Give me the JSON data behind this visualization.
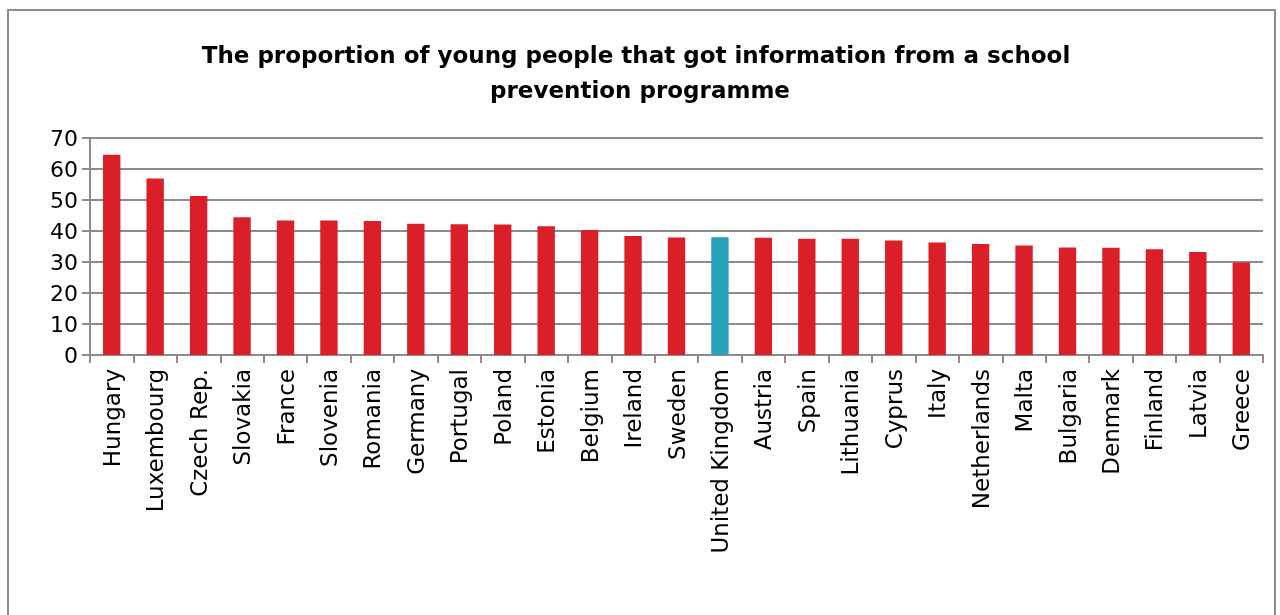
{
  "chart_data": {
    "type": "bar",
    "title": "The proportion of young people that got information from a school prevention programme",
    "categories": [
      "Hungary",
      "Luxembourg",
      "Czech Rep.",
      "Slovakia",
      "France",
      "Slovenia",
      "Romania",
      "Germany",
      "Portugal",
      "Poland",
      "Estonia",
      "Belgium",
      "Ireland",
      "Sweden",
      "United Kingdom",
      "Austria",
      "Spain",
      "Lithuania",
      "Cyprus",
      "Italy",
      "Netherlands",
      "Malta",
      "Bulgaria",
      "Denmark",
      "Finland",
      "Latvia",
      "Greece"
    ],
    "values": [
      64.6,
      56.9,
      51.3,
      44.4,
      43.4,
      43.4,
      43.2,
      42.3,
      42.2,
      42.1,
      41.5,
      40.3,
      38.4,
      37.9,
      38.0,
      37.8,
      37.5,
      37.5,
      36.9,
      36.3,
      35.8,
      35.3,
      34.7,
      34.6,
      34.1,
      33.2,
      29.8
    ],
    "colors": [
      "#da1f28",
      "#da1f28",
      "#da1f28",
      "#da1f28",
      "#da1f28",
      "#da1f28",
      "#da1f28",
      "#da1f28",
      "#da1f28",
      "#da1f28",
      "#da1f28",
      "#da1f28",
      "#da1f28",
      "#da1f28",
      "#2aa2be",
      "#da1f28",
      "#da1f28",
      "#da1f28",
      "#da1f28",
      "#da1f28",
      "#da1f28",
      "#da1f28",
      "#da1f28",
      "#da1f28",
      "#da1f28",
      "#da1f28",
      "#da1f28"
    ],
    "ylim": [
      0,
      70
    ],
    "yticks": [
      0,
      10,
      20,
      30,
      40,
      50,
      60,
      70
    ],
    "grid": "y"
  }
}
